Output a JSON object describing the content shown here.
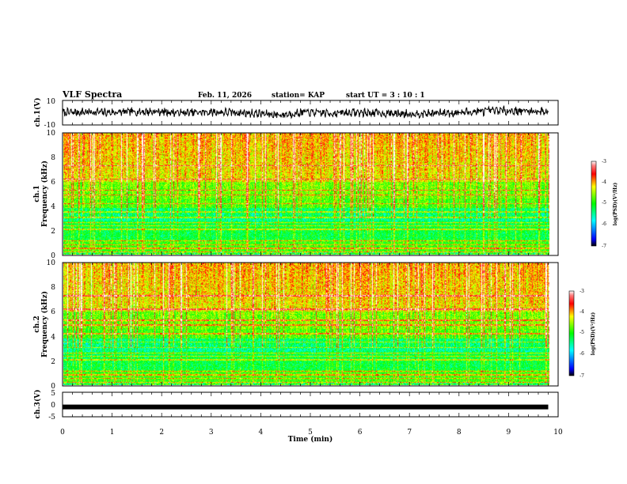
{
  "header": {
    "title": "VLF Spectra",
    "date": "Feb. 11, 2026",
    "station": "station= KAP",
    "start_time": "start UT =  3 : 10 : 1"
  },
  "chart_data": [
    {
      "id": "ch1-waveform",
      "type": "line",
      "ylabel": "ch.1(V)",
      "ylim": [
        -10,
        10
      ],
      "yticks": [
        "10",
        "-10"
      ],
      "xlim": [
        0,
        10
      ],
      "x_end": 9.8,
      "trend": [
        0,
        0.6,
        0.2,
        0.8,
        0.9,
        -0.2,
        0.5,
        0.3,
        -0.6,
        -1.8,
        0.4,
        -0.5,
        0.2,
        -0.3,
        -0.8,
        -0.6,
        -0.2,
        0.9,
        1.8,
        1.4,
        0.9
      ]
    },
    {
      "id": "ch1-spectrogram",
      "type": "heatmap",
      "ylabel": "ch.1",
      "ylabel2": "Frequency (kHz)",
      "ylim": [
        0,
        10
      ],
      "yticks": [
        "0",
        "2",
        "4",
        "6",
        "8",
        "10"
      ],
      "xlim": [
        0,
        10
      ],
      "x_end": 9.8,
      "colorbar": {
        "min": -7,
        "max": -3,
        "ticks": [
          "-3",
          "-4",
          "-5",
          "-6",
          "-7"
        ],
        "label": "log(PSD)(V²/Hz)"
      }
    },
    {
      "id": "ch2-spectrogram",
      "type": "heatmap",
      "ylabel": "ch.2",
      "ylabel2": "Frequency (kHz)",
      "ylim": [
        0,
        10
      ],
      "yticks": [
        "0",
        "2",
        "4",
        "6",
        "8",
        "10"
      ],
      "xlim": [
        0,
        10
      ],
      "x_end": 9.8,
      "colorbar": {
        "min": -7,
        "max": -3,
        "ticks": [
          "-3",
          "-4",
          "-5",
          "-6",
          "-7"
        ],
        "label": "log(PSD)(V²/Hz)"
      }
    },
    {
      "id": "ch3-signal",
      "type": "line",
      "ylabel": "ch.3(V)",
      "ylim": [
        -5,
        5
      ],
      "yticks": [
        "5",
        "0",
        "-5"
      ],
      "xlim": [
        0,
        10
      ],
      "x_end": 9.8,
      "level": -1
    }
  ],
  "xaxis": {
    "label": "Time (min)",
    "ticks": [
      "0",
      "1",
      "2",
      "3",
      "4",
      "5",
      "6",
      "7",
      "8",
      "9",
      "10"
    ]
  }
}
